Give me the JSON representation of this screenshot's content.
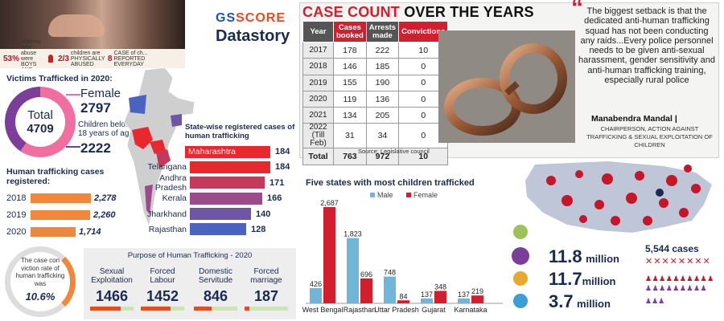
{
  "photo_strip": {
    "s1_num": "53%",
    "s1_text": "children who ... abuse were BOYS AND GIRLS",
    "s2_num": "2/3",
    "s2_text": "children are PHYSICALLY ABUSED",
    "s3_num": "8",
    "s3_text": "CASE of ch... REPORTED EVERYDAY"
  },
  "logo": {
    "brand": "GS",
    "brand2": "SCORE",
    "sub": "Datastory"
  },
  "victims": {
    "title": "Victims Trafficked in 2020:",
    "total_label": "Total",
    "total": "4709",
    "female_label": "Female",
    "female": "2797",
    "children_label": "Children below 18 years of age",
    "children": "2222"
  },
  "ht_cases": {
    "title": "Human trafficking cases registered:",
    "rows": [
      {
        "year": "2018",
        "value": "2,278",
        "n": 2278
      },
      {
        "year": "2019",
        "value": "2,260",
        "n": 2260
      },
      {
        "year": "2020",
        "value": "1,714",
        "n": 1714
      }
    ]
  },
  "state_cases": {
    "title": "State-wise registered cases of human trafficking",
    "rows": [
      {
        "state": "Maharashtra",
        "value": "184",
        "color": "#e8272f"
      },
      {
        "state": "Telangana",
        "value": "184",
        "color": "#e8272f"
      },
      {
        "state": "Andhra Pradesh",
        "value": "171",
        "color": "#c43a5a"
      },
      {
        "state": "Kerala",
        "value": "166",
        "color": "#9b4a8c"
      },
      {
        "state": "Jharkhand",
        "value": "140",
        "color": "#6f55a8"
      },
      {
        "state": "Rajasthan",
        "value": "128",
        "color": "#4a62c0"
      }
    ]
  },
  "case_count": {
    "title_part1": "CASE COUNT",
    "title_part2": " OVER THE YEARS",
    "headers": [
      "Year",
      "Cases booked",
      "Arrests made",
      "Convictions"
    ],
    "rows": [
      [
        "2017",
        "178",
        "222",
        "10"
      ],
      [
        "2018",
        "146",
        "185",
        "0"
      ],
      [
        "2019",
        "155",
        "190",
        "0"
      ],
      [
        "2020",
        "119",
        "136",
        "0"
      ],
      [
        "2021",
        "134",
        "205",
        "0"
      ],
      [
        "2022 (Till Feb)",
        "31",
        "34",
        "0"
      ]
    ],
    "total": [
      "Total",
      "763",
      "972",
      "10"
    ],
    "source": "Source: Legislative council"
  },
  "quote": {
    "text": "The biggest setback is that the dedicated anti-human trafficking squad has not been conducting any raids...Every police personnel needs to be given anti-sexual harassment, gender sensitivity and anti-human trafficking training, especially rural police",
    "author": "Manabendra Mandal |",
    "role": "CHAIRPERSON, ACTION AGAINST TRAFFICKING & SEXUAL EXPLOITATION OF CHILDREN"
  },
  "conviction": {
    "text": "The case con viction rate of human trafficking was",
    "value": "10.6%"
  },
  "purpose": {
    "title": "Purpose of Human Trafficking - 2020",
    "items": [
      {
        "label": "Sexual Exploitation",
        "value": "1466",
        "n": 1466
      },
      {
        "label": "Forced Labour",
        "value": "1452",
        "n": 1452
      },
      {
        "label": "Domestic Servitude",
        "value": "846",
        "n": 846
      },
      {
        "label": "Forced marriage",
        "value": "187",
        "n": 187
      }
    ]
  },
  "chart_data": {
    "type": "bar",
    "title": "Five states with most children trafficked",
    "categories": [
      "West Bengal",
      "Rajasthan",
      "Uttar Pradesh",
      "Gujarat",
      "Karnataka"
    ],
    "series": [
      {
        "name": "Male",
        "color": "#6fb6d9",
        "values": [
          426,
          1823,
          748,
          137,
          137
        ]
      },
      {
        "name": "Female",
        "color": "#d11f2f",
        "values": [
          2687,
          696,
          84,
          348,
          219
        ]
      }
    ],
    "ylim": [
      0,
      2800
    ],
    "legend": "top"
  },
  "global_stats": {
    "m1": "11.8",
    "m1_unit": "million",
    "m2": "11.7",
    "m2_unit": "million",
    "m3": "3.7",
    "m3_unit": "million",
    "cases": "5,544 cases"
  }
}
